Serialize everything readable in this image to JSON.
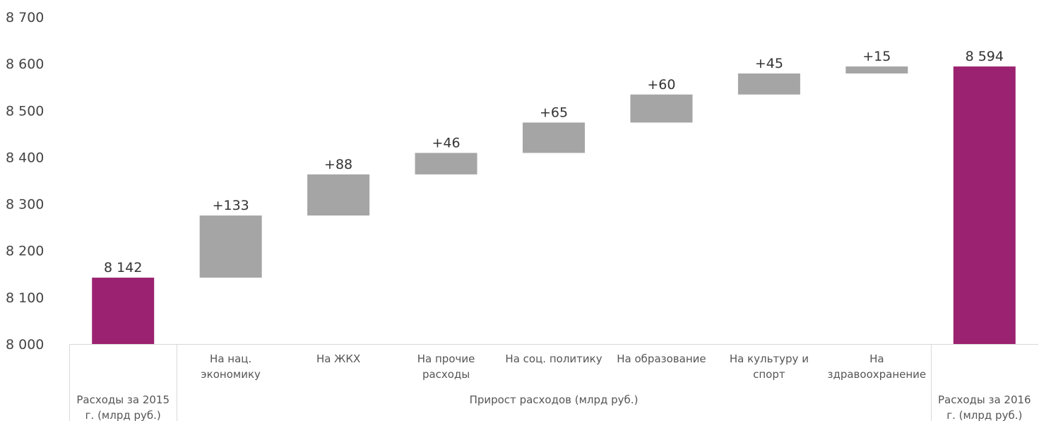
{
  "chart_data": {
    "type": "bar",
    "subtype": "waterfall",
    "y_ticks": [
      "8 000",
      "8 100",
      "8 200",
      "8 300",
      "8 400",
      "8 500",
      "8 600",
      "8 700"
    ],
    "ylim": [
      8000,
      8700
    ],
    "grid": false,
    "legend": "none",
    "colors": {
      "total": "#9b2270",
      "delta": "#a5a5a5"
    },
    "categories": [
      {
        "label": [
          "Расходы за 2015",
          "г. (млрд руб.)"
        ],
        "kind": "total",
        "base": 0,
        "value": 8142,
        "data_label": "8 142"
      },
      {
        "label": [
          "На нац.",
          "экономику"
        ],
        "kind": "delta",
        "base": 8142,
        "value": 133,
        "data_label": "+133"
      },
      {
        "label": [
          "На ЖКХ"
        ],
        "kind": "delta",
        "base": 8275,
        "value": 88,
        "data_label": "+88"
      },
      {
        "label": [
          "На прочие",
          "расходы"
        ],
        "kind": "delta",
        "base": 8363,
        "value": 46,
        "data_label": "+46"
      },
      {
        "label": [
          "На соц. политику"
        ],
        "kind": "delta",
        "base": 8409,
        "value": 65,
        "data_label": "+65"
      },
      {
        "label": [
          "На образование"
        ],
        "kind": "delta",
        "base": 8474,
        "value": 60,
        "data_label": "+60"
      },
      {
        "label": [
          "На культуру  и",
          "спорт"
        ],
        "kind": "delta",
        "base": 8534,
        "value": 45,
        "data_label": "+45"
      },
      {
        "label": [
          "На",
          "здравоохранение"
        ],
        "kind": "delta",
        "base": 8579,
        "value": 15,
        "data_label": "+15"
      },
      {
        "label": [
          "Расходы за 2016",
          "г. (млрд руб.)"
        ],
        "kind": "total",
        "base": 0,
        "value": 8594,
        "data_label": "8 594"
      }
    ],
    "group_label": "Прирост расходов (млрд руб.)"
  }
}
